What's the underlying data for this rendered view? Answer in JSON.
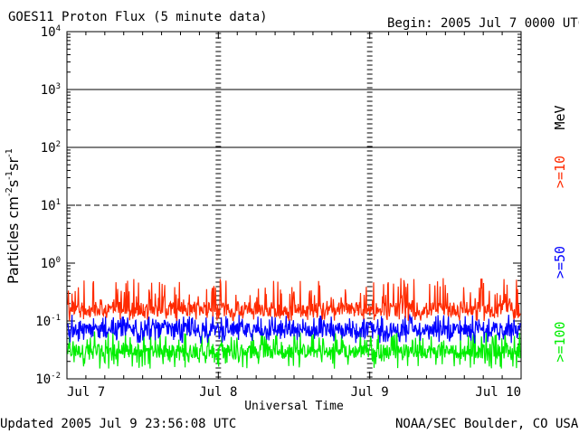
{
  "header": {
    "title": "GOES11 Proton Flux (5 minute data)",
    "begin": "Begin: 2005 Jul 7 0000 UTC"
  },
  "footer": {
    "updated": "Updated 2005 Jul  9 23:56:08 UTC",
    "credit": "NOAA/SEC Boulder, CO USA"
  },
  "chart_data": {
    "type": "line",
    "title": "GOES11 Proton Flux (5 minute data)",
    "xlabel": "Universal Time",
    "ylabel": "Particles cm-2s-1sr-1",
    "y_scale": "log",
    "ylim": [
      0.01,
      10000
    ],
    "x_ticks": [
      "Jul 7",
      "Jul 8",
      "Jul 9",
      "Jul 10"
    ],
    "y_ticks": [
      "10-2",
      "10-1",
      "100",
      "101",
      "102",
      "103",
      "104"
    ],
    "thresholds": [
      {
        "value": 10,
        "style": "dashed"
      },
      {
        "value": 100,
        "style": "solid"
      },
      {
        "value": 1000,
        "style": "solid"
      }
    ],
    "energy_unit": "MeV",
    "series": [
      {
        "name": ">=10",
        "color": "#ff2a00",
        "baseline": 0.16,
        "range": [
          0.1,
          0.55
        ]
      },
      {
        "name": ">=50",
        "color": "#0000ff",
        "baseline": 0.07,
        "range": [
          0.04,
          0.13
        ]
      },
      {
        "name": ">=100",
        "color": "#00ee00",
        "baseline": 0.03,
        "range": [
          0.015,
          0.07
        ]
      }
    ]
  }
}
